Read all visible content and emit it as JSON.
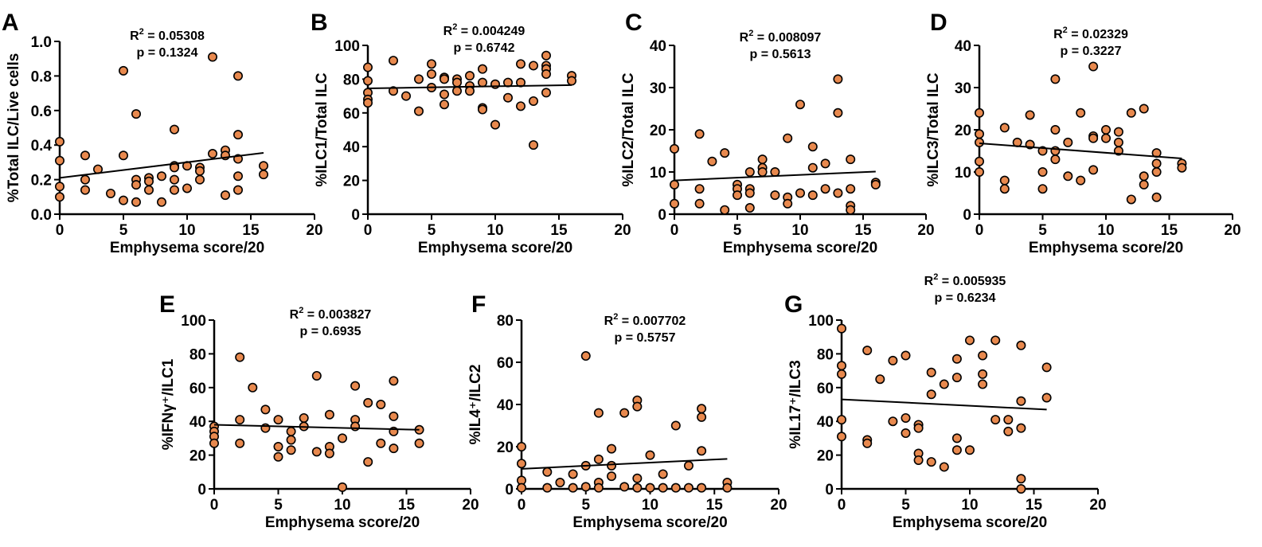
{
  "colors": {
    "point_fill": "#e8894e",
    "point_stroke": "#000000",
    "line": "#000000"
  },
  "chart_data": [
    {
      "type": "scatter",
      "panel": "A",
      "xlabel": "Emphysema score/20",
      "ylabel": "%Total ILC/Live cells",
      "xlim": [
        0,
        20
      ],
      "ylim": [
        0,
        1.0
      ],
      "xticks": [
        "0",
        "5",
        "10",
        "15",
        "20"
      ],
      "yticks": [
        "0.0",
        "0.2",
        "0.4",
        "0.6",
        "0.8",
        "1.0"
      ],
      "r2_label": "R",
      "r2_sup": "2",
      "r2_value": " = 0.05308",
      "p_text": "p = 0.1324",
      "fit": {
        "x": [
          0,
          16
        ],
        "y": [
          0.21,
          0.355
        ]
      },
      "points": [
        [
          0,
          0.42
        ],
        [
          0,
          0.31
        ],
        [
          0,
          0.16
        ],
        [
          0,
          0.1
        ],
        [
          2,
          0.34
        ],
        [
          2,
          0.2
        ],
        [
          2,
          0.14
        ],
        [
          3,
          0.26
        ],
        [
          4,
          0.12
        ],
        [
          5,
          0.83
        ],
        [
          5,
          0.34
        ],
        [
          5,
          0.08
        ],
        [
          6,
          0.58
        ],
        [
          6,
          0.2
        ],
        [
          6,
          0.17
        ],
        [
          6,
          0.07
        ],
        [
          7,
          0.21
        ],
        [
          7,
          0.19
        ],
        [
          7,
          0.14
        ],
        [
          8,
          0.22
        ],
        [
          8,
          0.07
        ],
        [
          9,
          0.49
        ],
        [
          9,
          0.28
        ],
        [
          9,
          0.27
        ],
        [
          9,
          0.2
        ],
        [
          9,
          0.14
        ],
        [
          10,
          0.28
        ],
        [
          10,
          0.15
        ],
        [
          11,
          0.27
        ],
        [
          11,
          0.25
        ],
        [
          11,
          0.2
        ],
        [
          12,
          0.91
        ],
        [
          12,
          0.35
        ],
        [
          13,
          0.37
        ],
        [
          13,
          0.34
        ],
        [
          13,
          0.11
        ],
        [
          14,
          0.8
        ],
        [
          14,
          0.46
        ],
        [
          14,
          0.32
        ],
        [
          14,
          0.22
        ],
        [
          14,
          0.14
        ],
        [
          16,
          0.28
        ],
        [
          16,
          0.23
        ]
      ]
    },
    {
      "type": "scatter",
      "panel": "B",
      "xlabel": "Emphysema score/20",
      "ylabel": "%ILC1/Total ILC",
      "xlim": [
        0,
        20
      ],
      "ylim": [
        0,
        100
      ],
      "xticks": [
        "0",
        "5",
        "10",
        "15",
        "20"
      ],
      "yticks": [
        "0",
        "20",
        "40",
        "60",
        "80",
        "100"
      ],
      "r2_label": "R",
      "r2_sup": "2",
      "r2_value": " = 0.004249",
      "p_text": "p = 0.6742",
      "fit": {
        "x": [
          0,
          16
        ],
        "y": [
          74.5,
          76.5
        ]
      },
      "points": [
        [
          0,
          87
        ],
        [
          0,
          79
        ],
        [
          0,
          72
        ],
        [
          0,
          68
        ],
        [
          0,
          66
        ],
        [
          2,
          91
        ],
        [
          2,
          73
        ],
        [
          3,
          70
        ],
        [
          4,
          80
        ],
        [
          4,
          61
        ],
        [
          5,
          89
        ],
        [
          5,
          83
        ],
        [
          5,
          75
        ],
        [
          6,
          81
        ],
        [
          6,
          80
        ],
        [
          6,
          71
        ],
        [
          6,
          65
        ],
        [
          7,
          80
        ],
        [
          7,
          78
        ],
        [
          7,
          73
        ],
        [
          8,
          82
        ],
        [
          8,
          76
        ],
        [
          8,
          73
        ],
        [
          9,
          86
        ],
        [
          9,
          78
        ],
        [
          9,
          63
        ],
        [
          9,
          62
        ],
        [
          10,
          77
        ],
        [
          10,
          53
        ],
        [
          11,
          78
        ],
        [
          11,
          69
        ],
        [
          12,
          89
        ],
        [
          12,
          78
        ],
        [
          12,
          64
        ],
        [
          13,
          88
        ],
        [
          13,
          67
        ],
        [
          13,
          41
        ],
        [
          14,
          94
        ],
        [
          14,
          88
        ],
        [
          14,
          86
        ],
        [
          14,
          83
        ],
        [
          14,
          72
        ],
        [
          16,
          82
        ],
        [
          16,
          79
        ]
      ]
    },
    {
      "type": "scatter",
      "panel": "C",
      "xlabel": "Emphysema score/20",
      "ylabel": "%ILC2/Total ILC",
      "xlim": [
        0,
        20
      ],
      "ylim": [
        0,
        40
      ],
      "xticks": [
        "0",
        "5",
        "10",
        "15",
        "20"
      ],
      "yticks": [
        "0",
        "10",
        "20",
        "30",
        "40"
      ],
      "r2_label": "R",
      "r2_sup": "2",
      "r2_value": " = 0.008097",
      "p_text": "p = 0.5613",
      "fit": {
        "x": [
          0,
          16
        ],
        "y": [
          8.0,
          10.1
        ]
      },
      "points": [
        [
          0,
          15.5
        ],
        [
          0,
          7
        ],
        [
          0,
          2.5
        ],
        [
          2,
          19
        ],
        [
          2,
          6
        ],
        [
          2,
          2.5
        ],
        [
          3,
          12.5
        ],
        [
          4,
          14.5
        ],
        [
          4,
          1
        ],
        [
          5,
          7
        ],
        [
          5,
          6
        ],
        [
          5,
          4.5
        ],
        [
          6,
          10
        ],
        [
          6,
          6
        ],
        [
          6,
          5
        ],
        [
          6,
          1.5
        ],
        [
          7,
          13
        ],
        [
          7,
          11
        ],
        [
          7,
          10
        ],
        [
          8,
          10
        ],
        [
          8,
          4.5
        ],
        [
          9,
          18
        ],
        [
          9,
          4
        ],
        [
          9,
          2.5
        ],
        [
          10,
          26
        ],
        [
          10,
          5
        ],
        [
          11,
          16
        ],
        [
          11,
          11
        ],
        [
          11,
          4.5
        ],
        [
          12,
          12
        ],
        [
          12,
          6
        ],
        [
          13,
          32
        ],
        [
          13,
          24
        ],
        [
          13,
          5
        ],
        [
          14,
          13
        ],
        [
          14,
          6
        ],
        [
          14,
          2
        ],
        [
          14,
          1
        ],
        [
          16,
          7.5
        ],
        [
          16,
          7
        ]
      ]
    },
    {
      "type": "scatter",
      "panel": "D",
      "xlabel": "Emphysema score/20",
      "ylabel": "%ILC3/Total ILC",
      "xlim": [
        0,
        20
      ],
      "ylim": [
        0,
        40
      ],
      "xticks": [
        "0",
        "5",
        "10",
        "15",
        "20"
      ],
      "yticks": [
        "0",
        "10",
        "20",
        "30",
        "40"
      ],
      "r2_label": "R",
      "r2_sup": "2",
      "r2_value": " = 0.02329",
      "p_text": "p = 0.3227",
      "fit": {
        "x": [
          0,
          16
        ],
        "y": [
          16.8,
          13.2
        ]
      },
      "points": [
        [
          0,
          24
        ],
        [
          0,
          19
        ],
        [
          0,
          17
        ],
        [
          0,
          12.5
        ],
        [
          0,
          10
        ],
        [
          2,
          20.5
        ],
        [
          2,
          8
        ],
        [
          2,
          6
        ],
        [
          3,
          17
        ],
        [
          4,
          23.5
        ],
        [
          4,
          16.5
        ],
        [
          5,
          15
        ],
        [
          5,
          10
        ],
        [
          5,
          6
        ],
        [
          6,
          32
        ],
        [
          6,
          20
        ],
        [
          6,
          15
        ],
        [
          6,
          13
        ],
        [
          7,
          17
        ],
        [
          7,
          9
        ],
        [
          8,
          24
        ],
        [
          8,
          8
        ],
        [
          9,
          35
        ],
        [
          9,
          18.5
        ],
        [
          9,
          18
        ],
        [
          9,
          10.5
        ],
        [
          10,
          20
        ],
        [
          10,
          18
        ],
        [
          11,
          19.5
        ],
        [
          11,
          17
        ],
        [
          11,
          15
        ],
        [
          12,
          24
        ],
        [
          12,
          3.5
        ],
        [
          13,
          25
        ],
        [
          13,
          9
        ],
        [
          13,
          7
        ],
        [
          14,
          14.5
        ],
        [
          14,
          12
        ],
        [
          14,
          10
        ],
        [
          14,
          4
        ],
        [
          16,
          12
        ],
        [
          16,
          11
        ]
      ]
    },
    {
      "type": "scatter",
      "panel": "E",
      "xlabel": "Emphysema score/20",
      "ylabel": "%IFNγ⁺/ILC1",
      "xlim": [
        0,
        20
      ],
      "ylim": [
        0,
        100
      ],
      "xticks": [
        "0",
        "5",
        "10",
        "15",
        "20"
      ],
      "yticks": [
        "0",
        "20",
        "40",
        "60",
        "80",
        "100"
      ],
      "r2_label": "R",
      "r2_sup": "2",
      "r2_value": " = 0.003827",
      "p_text": "p = 0.6935",
      "fit": {
        "x": [
          0,
          16
        ],
        "y": [
          38,
          35
        ]
      },
      "points": [
        [
          0,
          37
        ],
        [
          0,
          34
        ],
        [
          0,
          31
        ],
        [
          0,
          27
        ],
        [
          2,
          78
        ],
        [
          2,
          41
        ],
        [
          2,
          27
        ],
        [
          3,
          60
        ],
        [
          4,
          47
        ],
        [
          4,
          36
        ],
        [
          5,
          41
        ],
        [
          5,
          25
        ],
        [
          5,
          19
        ],
        [
          6,
          34
        ],
        [
          6,
          29
        ],
        [
          6,
          23
        ],
        [
          7,
          42
        ],
        [
          7,
          37
        ],
        [
          8,
          67
        ],
        [
          8,
          22
        ],
        [
          9,
          44
        ],
        [
          9,
          25
        ],
        [
          9,
          21
        ],
        [
          10,
          30
        ],
        [
          10,
          1
        ],
        [
          11,
          61
        ],
        [
          11,
          41
        ],
        [
          11,
          37
        ],
        [
          12,
          51
        ],
        [
          12,
          16
        ],
        [
          13,
          50
        ],
        [
          13,
          27
        ],
        [
          14,
          64
        ],
        [
          14,
          43
        ],
        [
          14,
          34
        ],
        [
          14,
          24
        ],
        [
          16,
          35
        ],
        [
          16,
          27
        ]
      ]
    },
    {
      "type": "scatter",
      "panel": "F",
      "xlabel": "Emphysema score/20",
      "ylabel": "%IL4⁺/ILC2",
      "xlim": [
        0,
        20
      ],
      "ylim": [
        0,
        80
      ],
      "xticks": [
        "0",
        "5",
        "10",
        "15",
        "20"
      ],
      "yticks": [
        "0",
        "20",
        "40",
        "60",
        "80"
      ],
      "r2_label": "R",
      "r2_sup": "2",
      "r2_value": " = 0.007702",
      "p_text": "p = 0.5757",
      "fit": {
        "x": [
          0,
          16
        ],
        "y": [
          9.5,
          14.2
        ]
      },
      "points": [
        [
          0,
          20
        ],
        [
          0,
          12
        ],
        [
          0,
          4
        ],
        [
          0,
          0.5
        ],
        [
          2,
          8
        ],
        [
          2,
          0.5
        ],
        [
          3,
          3
        ],
        [
          4,
          7
        ],
        [
          4,
          0.5
        ],
        [
          5,
          63
        ],
        [
          5,
          11
        ],
        [
          5,
          1
        ],
        [
          6,
          36
        ],
        [
          6,
          14
        ],
        [
          6,
          3
        ],
        [
          6,
          0.5
        ],
        [
          7,
          19
        ],
        [
          7,
          11
        ],
        [
          7,
          6
        ],
        [
          8,
          36
        ],
        [
          8,
          1
        ],
        [
          9,
          42
        ],
        [
          9,
          39
        ],
        [
          9,
          5
        ],
        [
          9,
          0.5
        ],
        [
          10,
          16
        ],
        [
          10,
          0.5
        ],
        [
          11,
          7
        ],
        [
          11,
          0.5
        ],
        [
          12,
          30
        ],
        [
          12,
          0.5
        ],
        [
          13,
          11
        ],
        [
          13,
          0.5
        ],
        [
          14,
          38
        ],
        [
          14,
          34
        ],
        [
          14,
          18
        ],
        [
          14,
          0.5
        ],
        [
          16,
          3
        ],
        [
          16,
          0.5
        ]
      ]
    },
    {
      "type": "scatter",
      "panel": "G",
      "xlabel": "Emphysema score/20",
      "ylabel": "%IL17⁺/ILC3",
      "xlim": [
        0,
        20
      ],
      "ylim": [
        0,
        100
      ],
      "xticks": [
        "0",
        "5",
        "10",
        "15",
        "20"
      ],
      "yticks": [
        "0",
        "20",
        "40",
        "60",
        "80",
        "100"
      ],
      "r2_label": "R",
      "r2_sup": "2",
      "r2_value": " = 0.005935",
      "p_text": "p = 0.6234",
      "fit": {
        "x": [
          0,
          16
        ],
        "y": [
          53,
          47
        ]
      },
      "points": [
        [
          0,
          95
        ],
        [
          0,
          73
        ],
        [
          0,
          68
        ],
        [
          0,
          41
        ],
        [
          0,
          31
        ],
        [
          2,
          82
        ],
        [
          2,
          29
        ],
        [
          2,
          27
        ],
        [
          3,
          65
        ],
        [
          4,
          76
        ],
        [
          4,
          40
        ],
        [
          5,
          79
        ],
        [
          5,
          42
        ],
        [
          5,
          33
        ],
        [
          6,
          38
        ],
        [
          6,
          36
        ],
        [
          6,
          21
        ],
        [
          6,
          17
        ],
        [
          7,
          69
        ],
        [
          7,
          56
        ],
        [
          7,
          16
        ],
        [
          8,
          62
        ],
        [
          8,
          13
        ],
        [
          9,
          77
        ],
        [
          9,
          66
        ],
        [
          9,
          30
        ],
        [
          9,
          23
        ],
        [
          10,
          88
        ],
        [
          10,
          23
        ],
        [
          11,
          79
        ],
        [
          11,
          68
        ],
        [
          11,
          62
        ],
        [
          12,
          88
        ],
        [
          12,
          41
        ],
        [
          13,
          41
        ],
        [
          13,
          34
        ],
        [
          14,
          85
        ],
        [
          14,
          52
        ],
        [
          14,
          36
        ],
        [
          14,
          6
        ],
        [
          14,
          0
        ],
        [
          16,
          72
        ],
        [
          16,
          54
        ]
      ]
    }
  ]
}
